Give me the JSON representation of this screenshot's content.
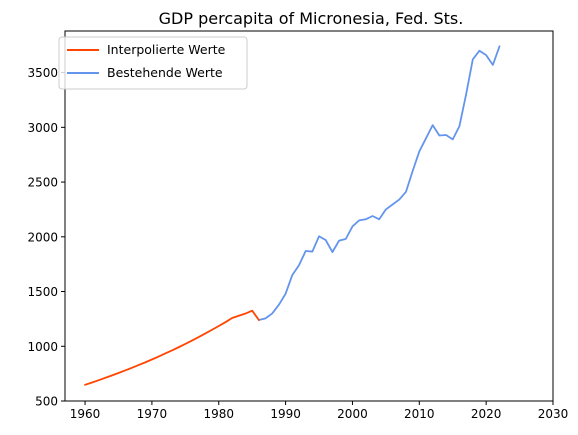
{
  "chart_data": {
    "type": "line",
    "title": "GDP percapita of Micronesia, Fed. Sts.",
    "xlabel": "",
    "ylabel": "",
    "xlim": [
      1957,
      2030
    ],
    "ylim": [
      500,
      3880
    ],
    "xticks": [
      1960,
      1970,
      1980,
      1990,
      2000,
      2010,
      2020,
      2030
    ],
    "yticks": [
      500,
      1000,
      1500,
      2000,
      2500,
      3000,
      3500
    ],
    "grid": false,
    "legend_position": "top-left",
    "series": [
      {
        "name": "Interpolierte Werte",
        "color": "#ff4500",
        "x": [
          1960,
          1961,
          1962,
          1963,
          1964,
          1965,
          1966,
          1967,
          1968,
          1969,
          1970,
          1971,
          1972,
          1973,
          1974,
          1975,
          1976,
          1977,
          1978,
          1979,
          1980,
          1981,
          1982,
          1983,
          1984,
          1985,
          1986
        ],
        "y": [
          648,
          668,
          689,
          711,
          733,
          756,
          779,
          803,
          828,
          853,
          879,
          906,
          934,
          962,
          991,
          1021,
          1052,
          1084,
          1117,
          1151,
          1185,
          1220,
          1258,
          1279,
          1299,
          1325,
          1240
        ]
      },
      {
        "name": "Bestehende Werte",
        "color": "#6495ed",
        "x": [
          1986,
          1987,
          1988,
          1989,
          1990,
          1991,
          1992,
          1993,
          1994,
          1995,
          1996,
          1997,
          1998,
          1999,
          2000,
          2001,
          2002,
          2003,
          2004,
          2005,
          2006,
          2007,
          2008,
          2009,
          2010,
          2011,
          2012,
          2013,
          2014,
          2015,
          2016,
          2017,
          2018,
          2019,
          2020,
          2021,
          2022
        ],
        "y": [
          1240,
          1255,
          1300,
          1380,
          1480,
          1650,
          1740,
          1870,
          1865,
          2005,
          1970,
          1860,
          1965,
          1980,
          2095,
          2150,
          2160,
          2190,
          2160,
          2250,
          2295,
          2340,
          2410,
          2600,
          2780,
          2900,
          3020,
          2925,
          2930,
          2890,
          3010,
          3300,
          3620,
          3700,
          3660,
          3570,
          3740
        ]
      }
    ]
  }
}
